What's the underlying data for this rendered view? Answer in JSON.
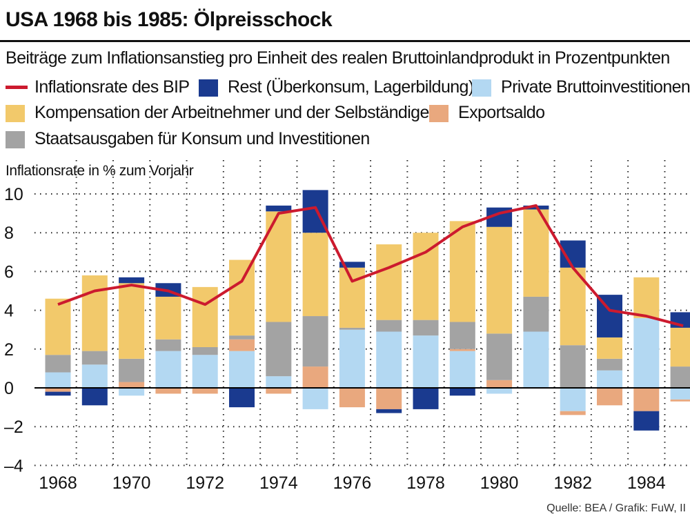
{
  "title": "USA 1968 bis 1985: Ölpreisschock",
  "subtitle": "Beiträge zum Inflationsanstieg pro Einheit des realen Bruttoinlandprodukt in Prozentpunkten",
  "legend": [
    {
      "label": "Inflationsrate des BIP",
      "kind": "line",
      "color": "#cc1a2e"
    },
    {
      "label": "Rest (Überkonsum, Lagerbildung)",
      "kind": "box",
      "color": "#1a3a8f"
    },
    {
      "label": "Private Bruttoinvestitionen",
      "kind": "box",
      "color": "#b3d8f2"
    },
    {
      "label": "Kompensation der Arbeitnehmer und der Selbständigen",
      "kind": "box",
      "color": "#f2c96b"
    },
    {
      "label": "Exportsaldo",
      "kind": "box",
      "color": "#e9a87e"
    },
    {
      "label": "Staatsausgaben für Konsum und Investitionen",
      "kind": "box",
      "color": "#a3a3a3"
    }
  ],
  "axis_title": "Inflationsrate in % zum Vorjahr",
  "source": "Quelle: BEA / Grafik: FuW, II",
  "chart_data": {
    "type": "bar",
    "stacked": true,
    "x": [
      1968,
      1969,
      1970,
      1971,
      1972,
      1973,
      1974,
      1975,
      1976,
      1977,
      1978,
      1979,
      1980,
      1981,
      1982,
      1983,
      1984,
      1985
    ],
    "x_tick_labels": [
      "1968",
      "1970",
      "1972",
      "1974",
      "1976",
      "1978",
      "1980",
      "1982",
      "1984"
    ],
    "y_ticks": [
      "10",
      "8",
      "6",
      "4",
      "2",
      "0",
      "–2",
      "–4"
    ],
    "ylim": [
      -4,
      10
    ],
    "grid": true,
    "series": [
      {
        "name": "Private Bruttoinvestitionen",
        "color": "#b3d8f2",
        "values": [
          0.8,
          1.2,
          -0.4,
          1.9,
          1.7,
          1.9,
          0.6,
          -1.1,
          3.0,
          2.9,
          2.7,
          1.9,
          -0.3,
          2.9,
          -1.2,
          0.9,
          3.6,
          -0.6
        ]
      },
      {
        "name": "Exportsaldo",
        "color": "#e9a87e",
        "values": [
          -0.2,
          0.0,
          0.3,
          -0.3,
          -0.3,
          0.6,
          -0.3,
          1.1,
          -1.0,
          -1.1,
          0.0,
          0.1,
          0.4,
          0.0,
          -0.2,
          -0.9,
          -1.2,
          -0.1
        ]
      },
      {
        "name": "Staatsausgaben für Konsum und Investitionen",
        "color": "#a3a3a3",
        "values": [
          0.9,
          0.7,
          1.2,
          0.6,
          0.4,
          0.2,
          2.8,
          2.6,
          0.1,
          0.6,
          0.8,
          1.4,
          2.4,
          1.8,
          2.2,
          0.6,
          0.0,
          1.1
        ]
      },
      {
        "name": "Kompensation der Arbeitnehmer und der Selbständigen",
        "color": "#f2c96b",
        "values": [
          2.9,
          3.9,
          3.9,
          2.2,
          3.1,
          3.9,
          5.7,
          4.3,
          3.1,
          3.9,
          4.5,
          5.2,
          5.5,
          4.5,
          4.0,
          1.1,
          2.1,
          2.0
        ]
      },
      {
        "name": "Rest (Überkonsum, Lagerbildung)",
        "color": "#1a3a8f",
        "values": [
          -0.2,
          -0.9,
          0.3,
          0.7,
          0.0,
          -1.0,
          0.3,
          2.2,
          0.3,
          -0.2,
          -1.1,
          -0.4,
          1.0,
          0.2,
          1.4,
          2.2,
          -1.0,
          0.8
        ]
      }
    ],
    "line": {
      "name": "Inflationsrate des BIP",
      "color": "#cc1a2e",
      "values": [
        4.3,
        5.0,
        5.3,
        5.0,
        4.3,
        5.5,
        9.0,
        9.3,
        5.5,
        6.2,
        7.0,
        8.3,
        9.0,
        9.4,
        6.2,
        4.0,
        3.7,
        3.2
      ]
    }
  }
}
